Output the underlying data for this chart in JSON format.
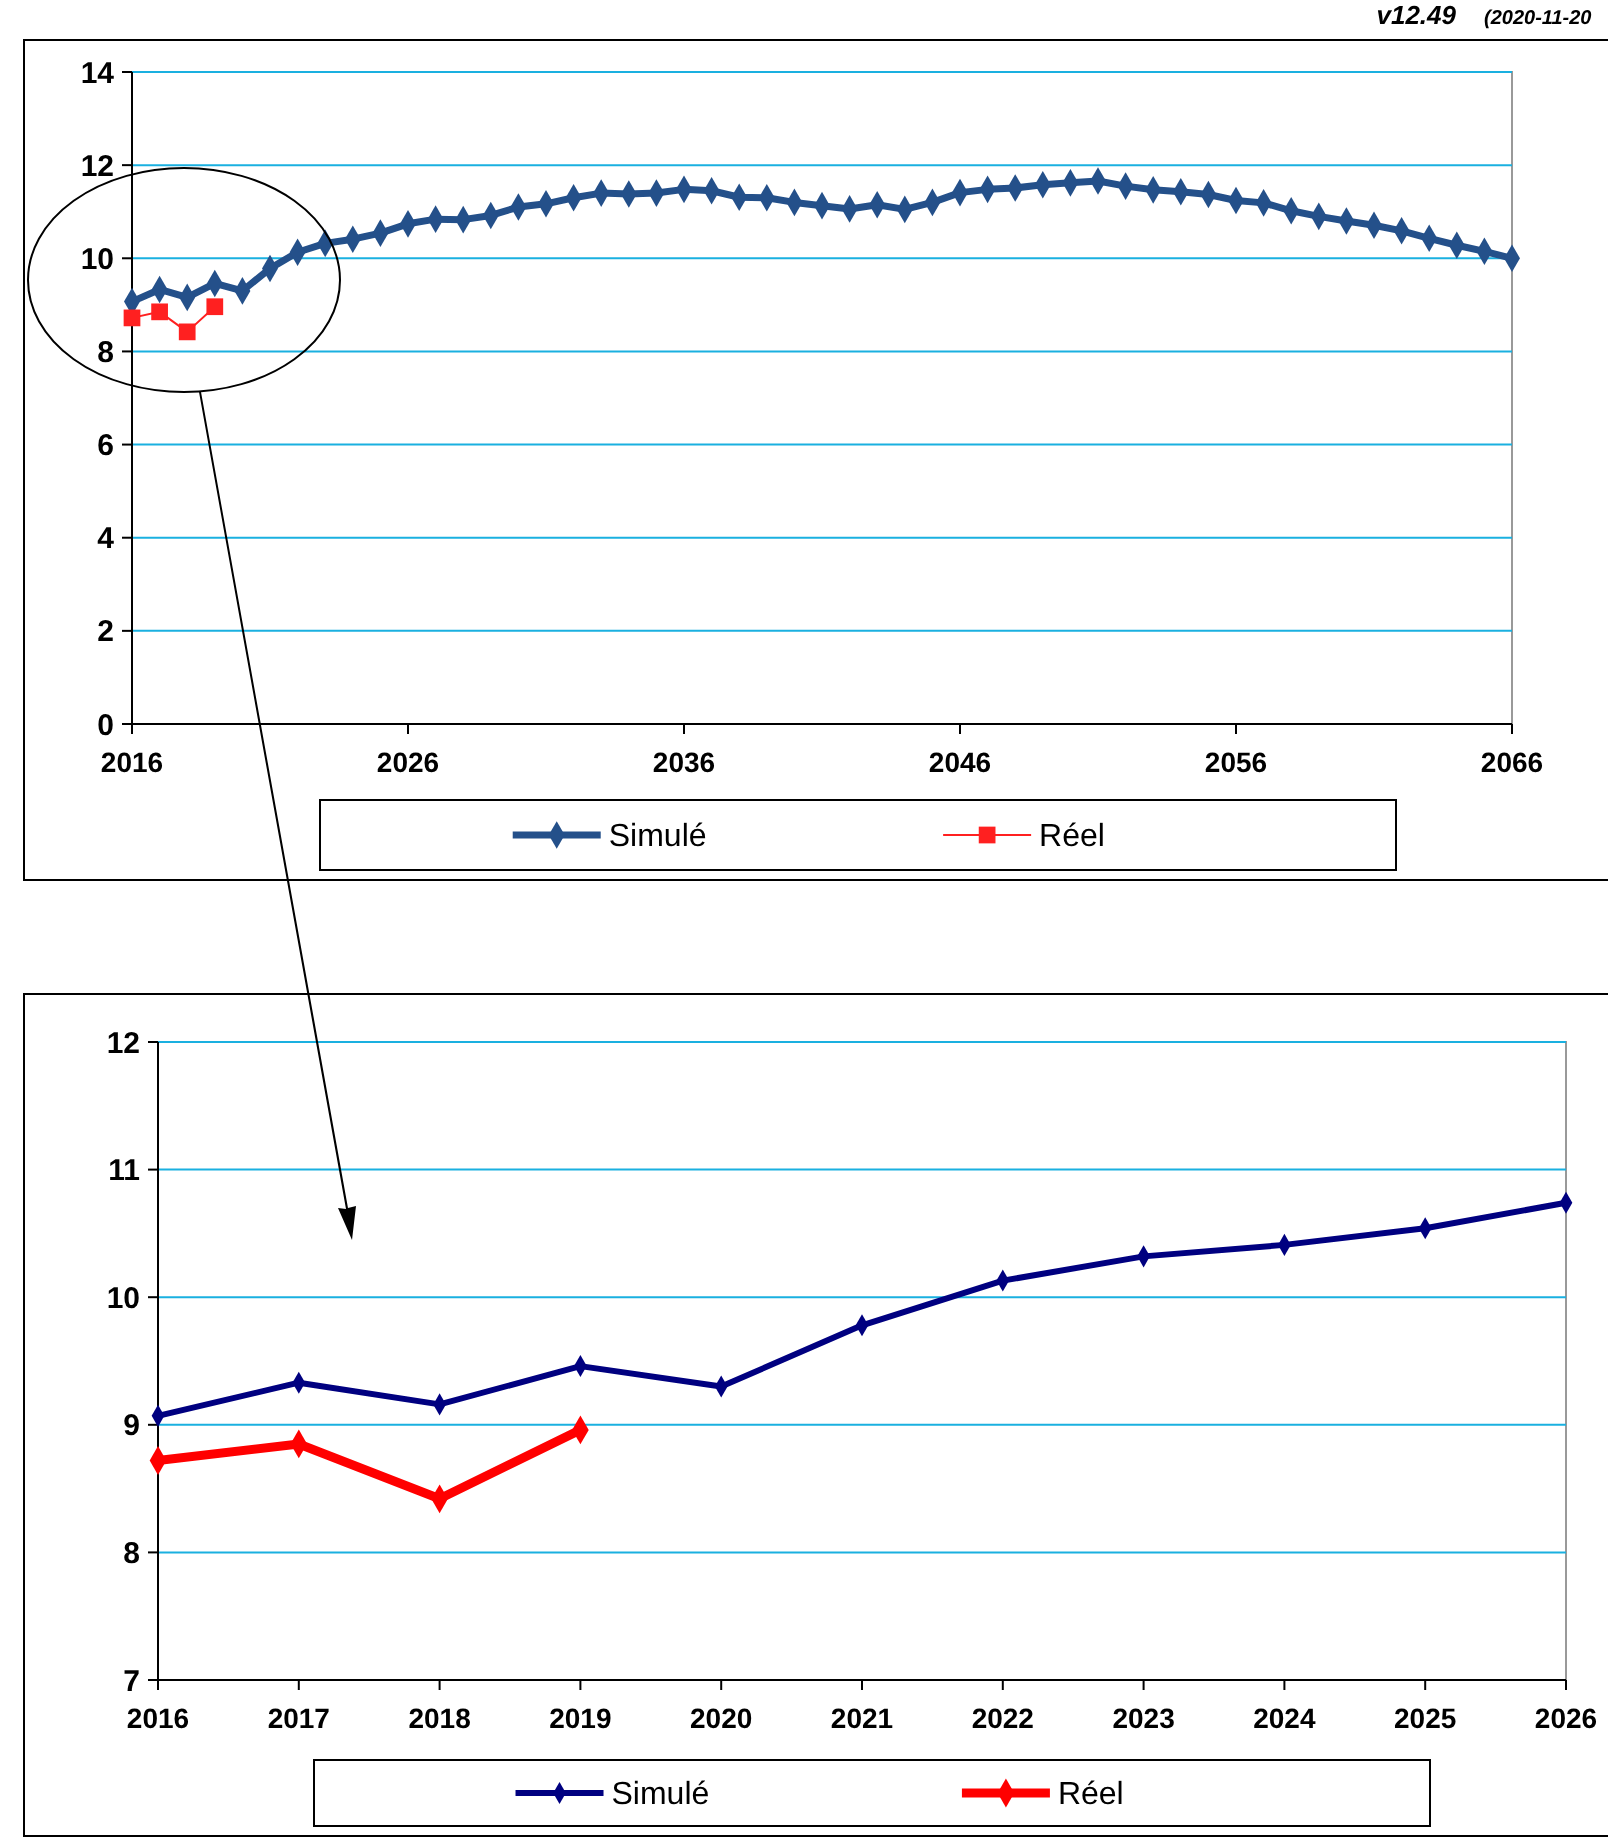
{
  "chart_data": [
    {
      "type": "line",
      "x": [
        2016,
        2017,
        2018,
        2019,
        2020,
        2021,
        2022,
        2023,
        2024,
        2025,
        2026,
        2027,
        2028,
        2029,
        2030,
        2031,
        2032,
        2033,
        2034,
        2035,
        2036,
        2037,
        2038,
        2039,
        2040,
        2041,
        2042,
        2043,
        2044,
        2045,
        2046,
        2047,
        2048,
        2049,
        2050,
        2051,
        2052,
        2053,
        2054,
        2055,
        2056,
        2057,
        2058,
        2059,
        2060,
        2061,
        2062,
        2063,
        2064,
        2065,
        2066
      ],
      "series": [
        {
          "name": "Simulé",
          "color": "#24508a",
          "marker": "diamond",
          "values": [
            9.07,
            9.33,
            9.16,
            9.46,
            9.3,
            9.78,
            10.13,
            10.32,
            10.41,
            10.54,
            10.74,
            10.84,
            10.83,
            10.92,
            11.1,
            11.17,
            11.3,
            11.4,
            11.38,
            11.4,
            11.48,
            11.45,
            11.31,
            11.3,
            11.2,
            11.13,
            11.06,
            11.15,
            11.05,
            11.2,
            11.41,
            11.48,
            11.51,
            11.58,
            11.62,
            11.66,
            11.55,
            11.47,
            11.43,
            11.37,
            11.24,
            11.19,
            11.02,
            10.9,
            10.8,
            10.71,
            10.59,
            10.43,
            10.28,
            10.15,
            10.0
          ]
        },
        {
          "name": "Réel",
          "color": "#ff2020",
          "marker": "square",
          "x": [
            2016,
            2017,
            2018,
            2019
          ],
          "values": [
            8.72,
            8.85,
            8.42,
            8.96
          ]
        }
      ],
      "xlim": [
        2016,
        2066
      ],
      "xticks": [
        2016,
        2026,
        2036,
        2046,
        2056,
        2066
      ],
      "ylim": [
        0,
        14
      ],
      "yticks": [
        0,
        2,
        4,
        6,
        8,
        10,
        12,
        14
      ],
      "grid": "y",
      "legend": "bottom",
      "line_style": "solid",
      "annotations": [
        "v12.49",
        "(2020-11-20"
      ]
    },
    {
      "type": "line",
      "x": [
        2016,
        2017,
        2018,
        2019,
        2020,
        2021,
        2022,
        2023,
        2024,
        2025,
        2026
      ],
      "series": [
        {
          "name": "Simulé",
          "color": "#000080",
          "marker": "diamond",
          "values": [
            9.07,
            9.33,
            9.16,
            9.46,
            9.3,
            9.78,
            10.13,
            10.32,
            10.41,
            10.54,
            10.74
          ]
        },
        {
          "name": "Réel",
          "color": "#ff0000",
          "marker": "diamond",
          "x": [
            2016,
            2017,
            2018,
            2019
          ],
          "values": [
            8.72,
            8.85,
            8.42,
            8.96
          ]
        }
      ],
      "xlim": [
        2016,
        2026
      ],
      "xticks": [
        2016,
        2017,
        2018,
        2019,
        2020,
        2021,
        2022,
        2023,
        2024,
        2025,
        2026
      ],
      "ylim": [
        7,
        12
      ],
      "yticks": [
        7,
        8,
        9,
        10,
        11,
        12
      ],
      "grid": "y",
      "legend": "bottom",
      "line_style": "solid"
    }
  ]
}
